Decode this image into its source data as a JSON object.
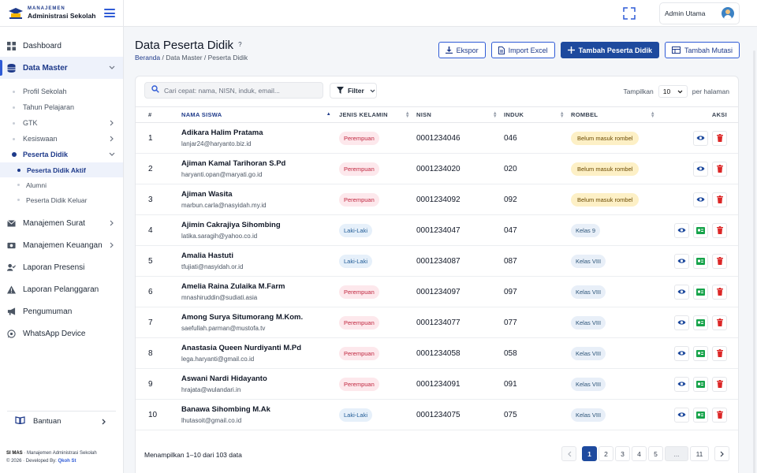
{
  "brand": {
    "subtitle": "MANAJEMEN",
    "title": "Administrasi Sekolah"
  },
  "topbar": {
    "user_name": "Admin Utama"
  },
  "sidebar": {
    "items": [
      {
        "label": "Dashboard",
        "icon": "grid-icon"
      },
      {
        "label": "Data Master",
        "icon": "database-icon"
      },
      {
        "label": "Manajemen Surat",
        "icon": "mail-icon"
      },
      {
        "label": "Manajemen Keuangan",
        "icon": "wallet-icon"
      },
      {
        "label": "Laporan Presensi",
        "icon": "user-check-icon"
      },
      {
        "label": "Laporan Pelanggaran",
        "icon": "warning-icon"
      },
      {
        "label": "Pengumuman",
        "icon": "megaphone-icon"
      },
      {
        "label": "WhatsApp Device",
        "icon": "whatsapp-icon"
      }
    ],
    "sub_items": [
      "Profil Sekolah",
      "Tahun Pelajaran",
      "GTK",
      "Kesiswaan",
      "Peserta Didik"
    ],
    "peserta_sub": [
      "Peserta Didik Aktif",
      "Alumni",
      "Peserta Didik Keluar"
    ],
    "help": "Bantuan",
    "footer": {
      "app": "SI MAS",
      "desc": " · Manajemen Administrasi Sekolah",
      "copy": "© 2026 · Developed By: ",
      "dev": "Qkoh St"
    }
  },
  "page": {
    "title": "Data Peserta Didik",
    "help_mark": "?",
    "breadcrumb": [
      "Beranda",
      "Data Master",
      "Peserta Didik"
    ],
    "buttons": {
      "export": "Ekspor",
      "import": "Import Excel",
      "add": "Tambah Peserta Didik",
      "mutasi": "Tambah Mutasi"
    }
  },
  "toolbar": {
    "search_placeholder": "Cari cepat: nama, NISN, induk, email...",
    "filter": "Filter",
    "show_label": "Tampilkan",
    "per_page": "10",
    "per_page_suffix": "per halaman"
  },
  "table": {
    "headers": {
      "no": "#",
      "name": "NAMA SISWA",
      "gender": "JENIS KELAMIN",
      "nisn": "NISN",
      "induk": "INDUK",
      "rombel": "ROMBEL",
      "aksi": "AKSI"
    },
    "rows": [
      {
        "no": "1",
        "name": "Adikara Halim Pratama",
        "email": "lanjar24@haryanto.biz.id",
        "gender": "Perempuan",
        "nisn": "0001234046",
        "induk": "046",
        "rombel": "Belum masuk rombel"
      },
      {
        "no": "2",
        "name": "Ajiman Kamal Tarihoran S.Pd",
        "email": "haryanti.opan@maryati.go.id",
        "gender": "Perempuan",
        "nisn": "0001234020",
        "induk": "020",
        "rombel": "Belum masuk rombel"
      },
      {
        "no": "3",
        "name": "Ajiman Wasita",
        "email": "marbun.carla@nasyidah.my.id",
        "gender": "Perempuan",
        "nisn": "0001234092",
        "induk": "092",
        "rombel": "Belum masuk rombel"
      },
      {
        "no": "4",
        "name": "Ajimin Cakrajiya Sihombing",
        "email": "latika.saragih@yahoo.co.id",
        "gender": "Laki-Laki",
        "nisn": "0001234047",
        "induk": "047",
        "rombel": "Kelas 9"
      },
      {
        "no": "5",
        "name": "Amalia Hastuti",
        "email": "tfujiati@nasyidah.or.id",
        "gender": "Laki-Laki",
        "nisn": "0001234087",
        "induk": "087",
        "rombel": "Kelas VIII"
      },
      {
        "no": "6",
        "name": "Amelia Raina Zulaika M.Farm",
        "email": "mnashiruddin@sudiati.asia",
        "gender": "Perempuan",
        "nisn": "0001234097",
        "induk": "097",
        "rombel": "Kelas VIII"
      },
      {
        "no": "7",
        "name": "Among Surya Situmorang M.Kom.",
        "email": "saefullah.parman@mustofa.tv",
        "gender": "Perempuan",
        "nisn": "0001234077",
        "induk": "077",
        "rombel": "Kelas VIII"
      },
      {
        "no": "8",
        "name": "Anastasia Queen Nurdiyanti M.Pd",
        "email": "lega.haryanti@gmail.co.id",
        "gender": "Perempuan",
        "nisn": "0001234058",
        "induk": "058",
        "rombel": "Kelas VIII"
      },
      {
        "no": "9",
        "name": "Aswani Nardi Hidayanto",
        "email": "hrajata@wulandari.in",
        "gender": "Perempuan",
        "nisn": "0001234091",
        "induk": "091",
        "rombel": "Kelas VIII"
      },
      {
        "no": "10",
        "name": "Banawa Sihombing M.Ak",
        "email": "lhutasoit@gmail.co.id",
        "gender": "Laki-Laki",
        "nisn": "0001234075",
        "induk": "075",
        "rombel": "Kelas VIII"
      }
    ]
  },
  "footer": {
    "info": "Menampilkan 1–10 dari 103 data",
    "pages": [
      "1",
      "2",
      "3",
      "4",
      "5",
      "...",
      "11"
    ],
    "current_page": "1"
  },
  "colors": {
    "primary": "#1e4a9e",
    "accent": "#2f5bd6",
    "female": "#c0263f",
    "male": "#1f5a96",
    "delete": "#dc2626",
    "card": "#16a34a"
  }
}
